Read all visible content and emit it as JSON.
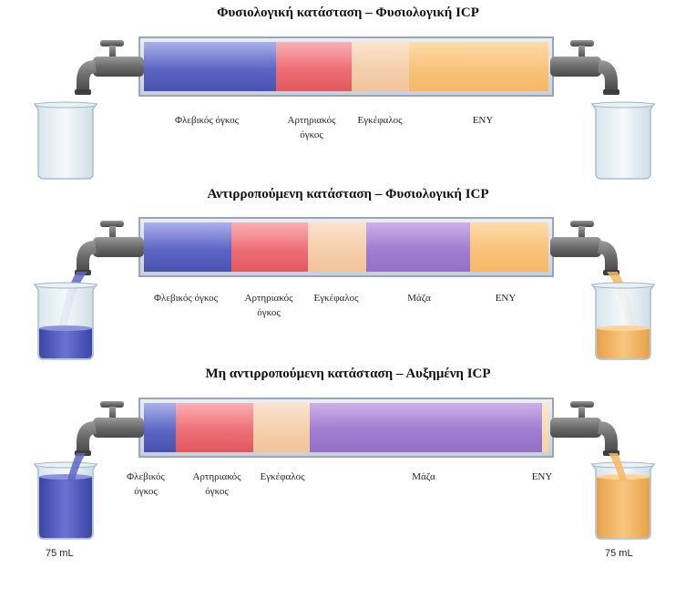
{
  "panels": [
    {
      "title": "Φυσιολογική κατάσταση – Φυσιολογική ICP",
      "labels": {
        "venous": "Φλεβικός όγκος",
        "arterial_1": "Αρτηριακός",
        "arterial_2": "όγκος",
        "brain": "Εγκέφαλος",
        "csf": "ΕΝΥ"
      },
      "left_beaker_fluid": "none",
      "right_beaker_fluid": "none"
    },
    {
      "title": "Αντιρροπούμενη κατάσταση – Φυσιολογική ICP",
      "labels": {
        "venous": "Φλεβικός όγκος",
        "arterial_1": "Αρτηριακός",
        "arterial_2": "όγκος",
        "brain": "Εγκέφαλος",
        "mass": "Μάζα",
        "csf": "ΕΝΥ"
      },
      "left_beaker_fluid": "venous",
      "right_beaker_fluid": "csf"
    },
    {
      "title": "Μη αντιρροπούμενη κατάσταση – Αυξημένη ICP",
      "labels": {
        "venous_1": "Φλεβικός",
        "venous_2": "όγκος",
        "arterial_1": "Αρτηριακός",
        "arterial_2": "όγκος",
        "brain": "Εγκέφαλος",
        "mass": "Μάζα",
        "csf": "ΕΝΥ"
      },
      "left_beaker_volume": "75 mL",
      "right_beaker_volume": "75 mL",
      "left_beaker_fluid": "venous",
      "right_beaker_fluid": "csf"
    }
  ],
  "colors": {
    "venous": "#5d66c4",
    "arterial": "#ee6f76",
    "brain": "#f5cfac",
    "mass": "#a17ed0",
    "csf": "#f9c27a",
    "tube_border": "#9aa6b8",
    "faucet": "#6e6e6e"
  },
  "icons": [
    "faucet-icon",
    "beaker-icon"
  ]
}
